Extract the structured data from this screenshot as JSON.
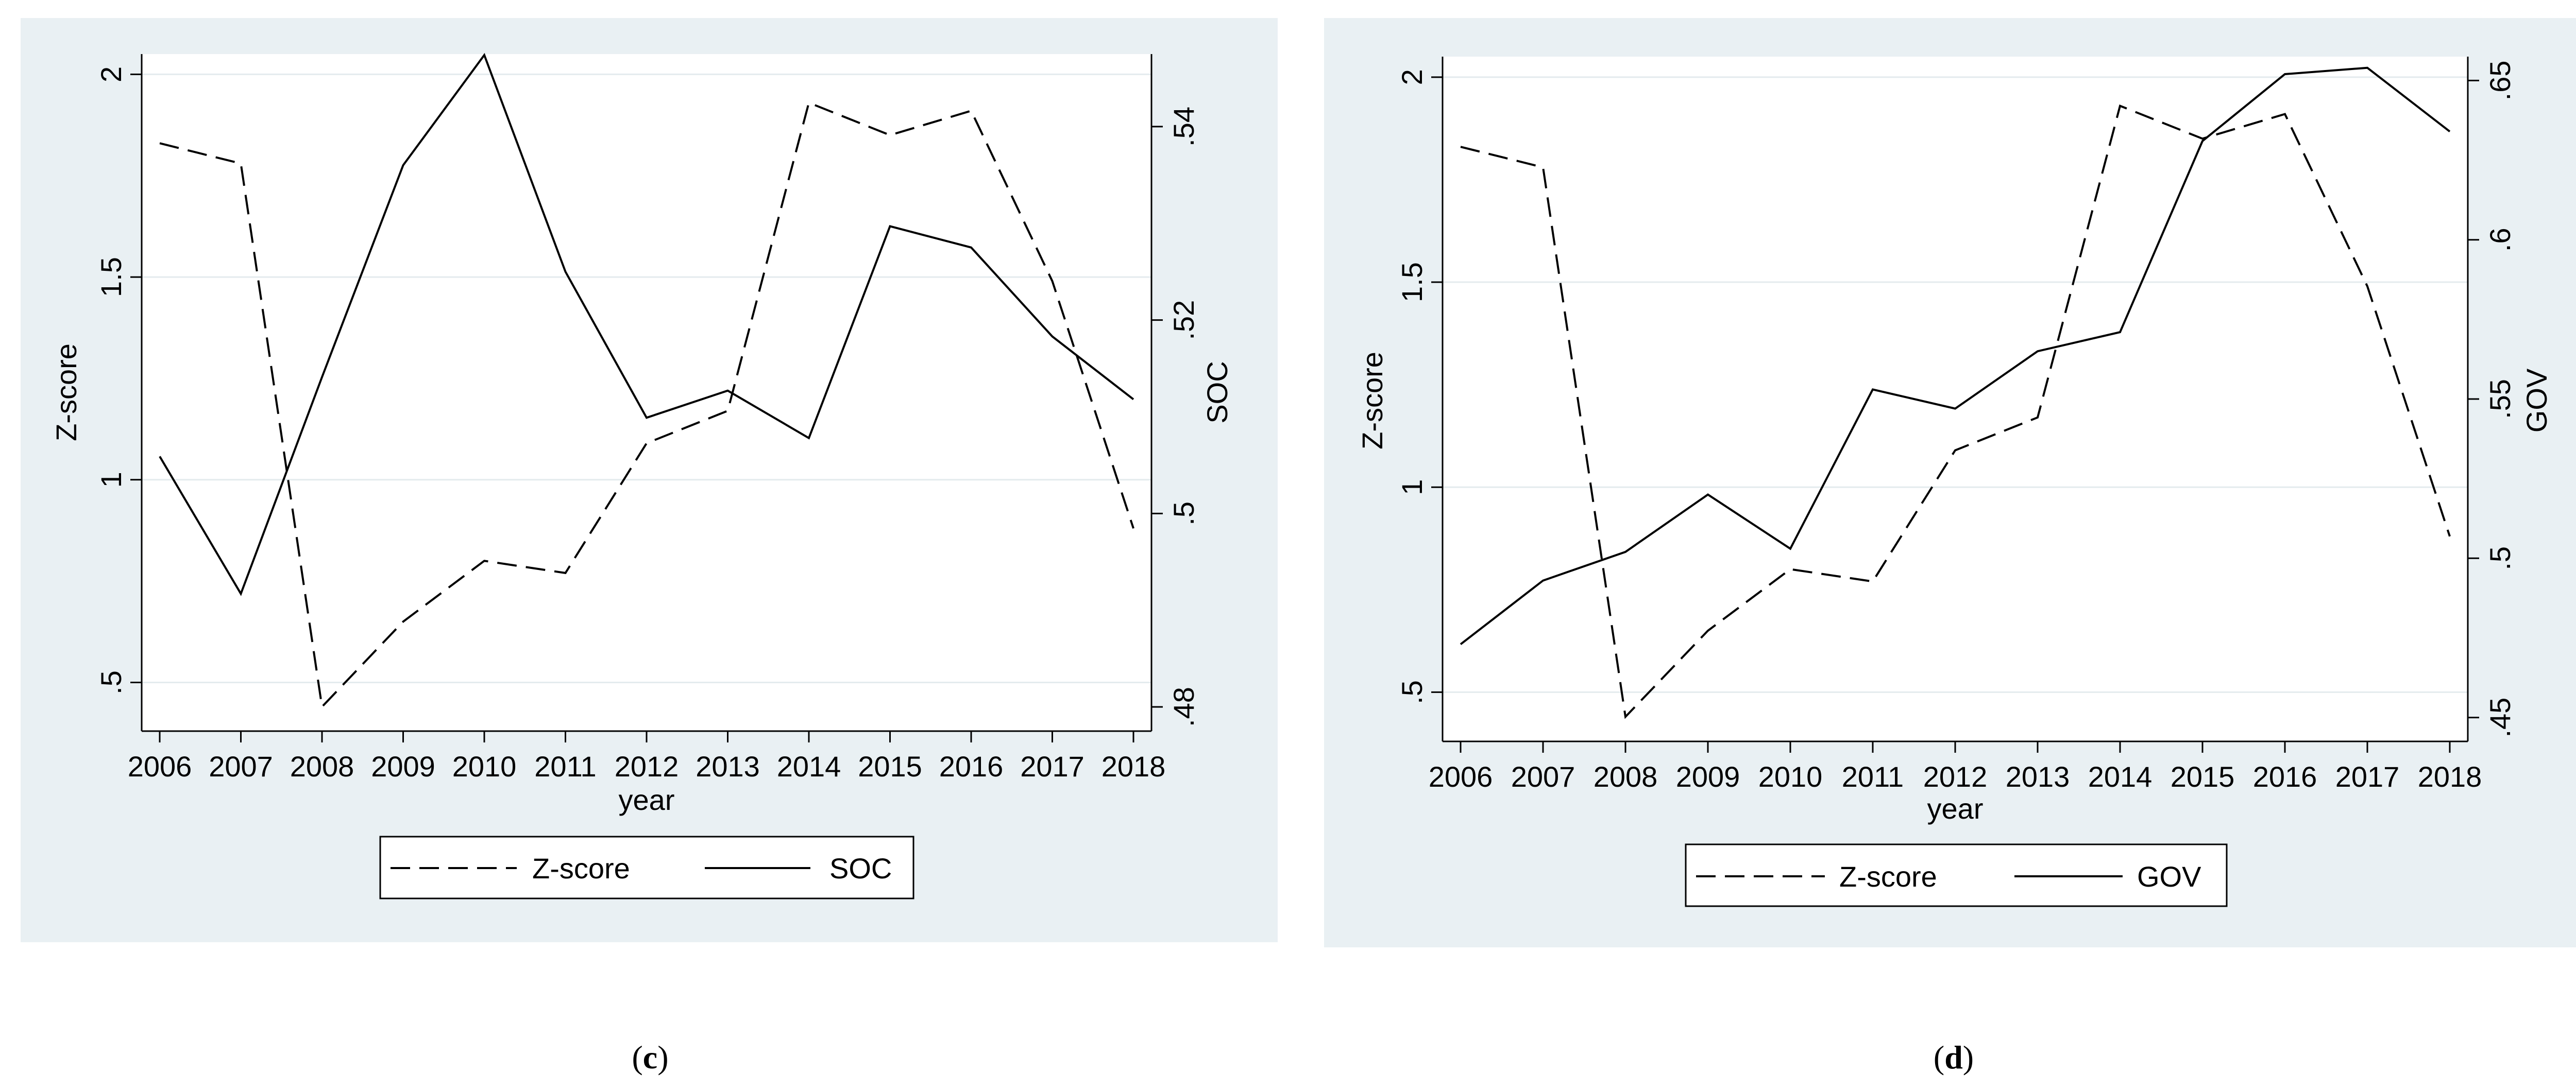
{
  "chart_data": [
    {
      "type": "line",
      "panel_label": "c",
      "xlabel": "year",
      "ylabel_left": "Z-score",
      "ylabel_right": "SOC",
      "x": [
        2006,
        2007,
        2008,
        2009,
        2010,
        2011,
        2012,
        2013,
        2014,
        2015,
        2016,
        2017,
        2018
      ],
      "y_left_lim": [
        0.38,
        2.05
      ],
      "y_right_lim": [
        0.4775,
        0.5475
      ],
      "y_left_ticks": [
        0.5,
        1,
        1.5,
        2
      ],
      "y_left_tick_labels": [
        ".5",
        "1",
        "1.5",
        "2"
      ],
      "y_right_ticks": [
        0.48,
        0.5,
        0.52,
        0.54
      ],
      "y_right_tick_labels": [
        ".48",
        ".5",
        ".52",
        ".54"
      ],
      "grid": true,
      "legend_position": "bottom",
      "series": [
        {
          "name": "Z-score",
          "axis": "left",
          "style": "dashed",
          "values": [
            1.83,
            1.78,
            0.44,
            0.65,
            0.8,
            0.77,
            1.09,
            1.17,
            1.93,
            1.85,
            1.91,
            1.49,
            0.88
          ]
        },
        {
          "name": "SOC",
          "axis": "right",
          "style": "solid",
          "values": [
            0.5059,
            0.4917,
            0.5141,
            0.536,
            0.5474,
            0.525,
            0.5099,
            0.5127,
            0.5078,
            0.5297,
            0.5275,
            0.5183,
            0.5118
          ]
        }
      ]
    },
    {
      "type": "line",
      "panel_label": "d",
      "xlabel": "year",
      "ylabel_left": "Z-score",
      "ylabel_right": "GOV",
      "x": [
        2006,
        2007,
        2008,
        2009,
        2010,
        2011,
        2012,
        2013,
        2014,
        2015,
        2016,
        2017,
        2018
      ],
      "y_left_lim": [
        0.38,
        2.05
      ],
      "y_right_lim": [
        0.4425,
        0.6575
      ],
      "y_left_ticks": [
        0.5,
        1,
        1.5,
        2
      ],
      "y_left_tick_labels": [
        ".5",
        "1",
        "1.5",
        "2"
      ],
      "y_right_ticks": [
        0.45,
        0.5,
        0.55,
        0.6,
        0.65
      ],
      "y_right_tick_labels": [
        ".45",
        ".5",
        ".55",
        ".6",
        ".65"
      ],
      "grid": true,
      "legend_position": "bottom",
      "series": [
        {
          "name": "Z-score",
          "axis": "left",
          "style": "dashed",
          "values": [
            1.83,
            1.78,
            0.44,
            0.65,
            0.8,
            0.77,
            1.09,
            1.17,
            1.93,
            1.85,
            1.91,
            1.49,
            0.88
          ]
        },
        {
          "name": "GOV",
          "axis": "right",
          "style": "solid",
          "values": [
            0.473,
            0.493,
            0.502,
            0.52,
            0.503,
            0.553,
            0.547,
            0.565,
            0.571,
            0.631,
            0.652,
            0.654,
            0.634
          ]
        }
      ]
    }
  ]
}
